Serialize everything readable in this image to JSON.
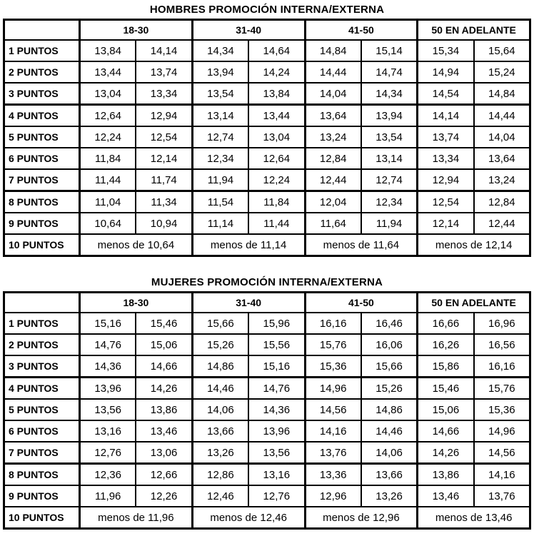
{
  "page": {
    "background": "#ffffff",
    "text_color": "#000000",
    "border_color": "#000000"
  },
  "tables": [
    {
      "title": "HOMBRES PROMOCIÓN INTERNA/EXTERNA",
      "corner_label": "",
      "age_group_headers": [
        "18-30",
        "31-40",
        "41-50",
        "50 EN ADELANTE"
      ],
      "rows": [
        {
          "label": "1 PUNTOS",
          "values": [
            "13,84",
            "14,14",
            "14,34",
            "14,64",
            "14,84",
            "15,14",
            "15,34",
            "15,64"
          ]
        },
        {
          "label": "2 PUNTOS",
          "values": [
            "13,44",
            "13,74",
            "13,94",
            "14,24",
            "14,44",
            "14,74",
            "14,94",
            "15,24"
          ]
        },
        {
          "label": "3 PUNTOS",
          "values": [
            "13,04",
            "13,34",
            "13,54",
            "13,84",
            "14,04",
            "14,34",
            "14,54",
            "14,84"
          ]
        },
        {
          "label": "4 PUNTOS",
          "values": [
            "12,64",
            "12,94",
            "13,14",
            "13,44",
            "13,64",
            "13,94",
            "14,14",
            "14,44"
          ]
        },
        {
          "label": "5 PUNTOS",
          "values": [
            "12,24",
            "12,54",
            "12,74",
            "13,04",
            "13,24",
            "13,54",
            "13,74",
            "14,04"
          ]
        },
        {
          "label": "6 PUNTOS",
          "values": [
            "11,84",
            "12,14",
            "12,34",
            "12,64",
            "12,84",
            "13,14",
            "13,34",
            "13,64"
          ]
        },
        {
          "label": "7 PUNTOS",
          "values": [
            "11,44",
            "11,74",
            "11,94",
            "12,24",
            "12,44",
            "12,74",
            "12,94",
            "13,24"
          ]
        },
        {
          "label": "8 PUNTOS",
          "values": [
            "11,04",
            "11,34",
            "11,54",
            "11,84",
            "12,04",
            "12,34",
            "12,54",
            "12,84"
          ]
        },
        {
          "label": "9 PUNTOS",
          "values": [
            "10,64",
            "10,94",
            "11,14",
            "11,44",
            "11,64",
            "11,94",
            "12,14",
            "12,44"
          ]
        },
        {
          "label": "10 PUNTOS",
          "merged_values": [
            "menos de 10,64",
            "menos de 11,14",
            "menos de 11,64",
            "menos de 12,14"
          ]
        }
      ]
    },
    {
      "title": "MUJERES PROMOCIÓN INTERNA/EXTERNA",
      "corner_label": "",
      "age_group_headers": [
        "18-30",
        "31-40",
        "41-50",
        "50 EN ADELANTE"
      ],
      "rows": [
        {
          "label": "1 PUNTOS",
          "values": [
            "15,16",
            "15,46",
            "15,66",
            "15,96",
            "16,16",
            "16,46",
            "16,66",
            "16,96"
          ]
        },
        {
          "label": "2 PUNTOS",
          "values": [
            "14,76",
            "15,06",
            "15,26",
            "15,56",
            "15,76",
            "16,06",
            "16,26",
            "16,56"
          ]
        },
        {
          "label": "3 PUNTOS",
          "values": [
            "14,36",
            "14,66",
            "14,86",
            "15,16",
            "15,36",
            "15,66",
            "15,86",
            "16,16"
          ]
        },
        {
          "label": "4 PUNTOS",
          "values": [
            "13,96",
            "14,26",
            "14,46",
            "14,76",
            "14,96",
            "15,26",
            "15,46",
            "15,76"
          ]
        },
        {
          "label": "5 PUNTOS",
          "values": [
            "13,56",
            "13,86",
            "14,06",
            "14,36",
            "14,56",
            "14,86",
            "15,06",
            "15,36"
          ]
        },
        {
          "label": "6 PUNTOS",
          "values": [
            "13,16",
            "13,46",
            "13,66",
            "13,96",
            "14,16",
            "14,46",
            "14,66",
            "14,96"
          ]
        },
        {
          "label": "7 PUNTOS",
          "values": [
            "12,76",
            "13,06",
            "13,26",
            "13,56",
            "13,76",
            "14,06",
            "14,26",
            "14,56"
          ]
        },
        {
          "label": "8 PUNTOS",
          "values": [
            "12,36",
            "12,66",
            "12,86",
            "13,16",
            "13,36",
            "13,66",
            "13,86",
            "14,16"
          ]
        },
        {
          "label": "9 PUNTOS",
          "values": [
            "11,96",
            "12,26",
            "12,46",
            "12,76",
            "12,96",
            "13,26",
            "13,46",
            "13,76"
          ]
        },
        {
          "label": "10 PUNTOS",
          "merged_values": [
            "menos de 11,96",
            "menos de 12,46",
            "menos de 12,96",
            "menos de 13,46"
          ]
        }
      ]
    }
  ]
}
